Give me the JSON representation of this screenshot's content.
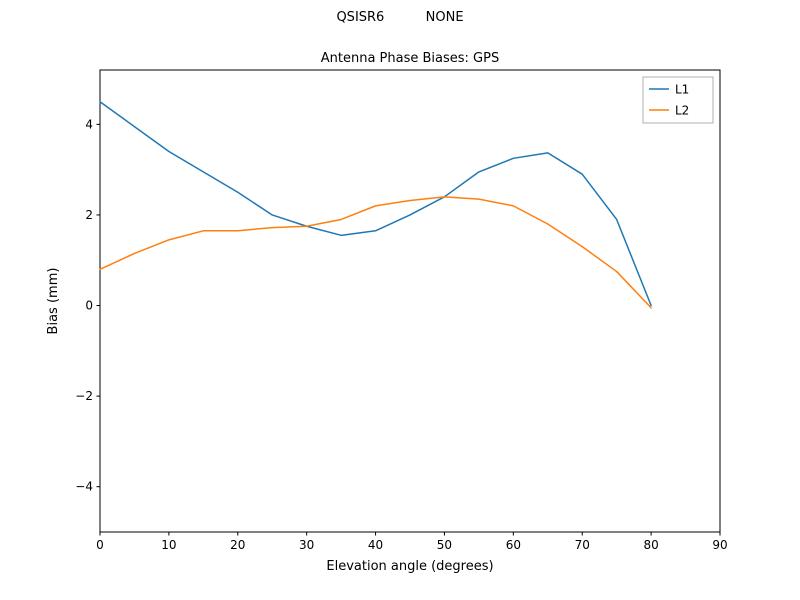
{
  "figure": {
    "suptitle": "QSISR6          NONE"
  },
  "chart_data": {
    "type": "line",
    "suptitle": "QSISR6          NONE",
    "title": "Antenna Phase Biases: GPS",
    "xlabel": "Elevation angle (degrees)",
    "ylabel": "Bias (mm)",
    "xlim": [
      0,
      90
    ],
    "ylim": [
      -5.0,
      5.2
    ],
    "xticks": [
      0,
      10,
      20,
      30,
      40,
      50,
      60,
      70,
      80,
      90
    ],
    "yticks": [
      -4,
      -2,
      0,
      2,
      4
    ],
    "grid": false,
    "legend_position": "upper right",
    "x": [
      0,
      5,
      10,
      15,
      20,
      25,
      30,
      35,
      40,
      45,
      50,
      55,
      60,
      65,
      70,
      75,
      80
    ],
    "series": [
      {
        "name": "L1",
        "color": "#1f77b4",
        "values": [
          4.5,
          3.95,
          3.4,
          2.95,
          2.5,
          2.0,
          1.75,
          1.55,
          1.65,
          2.0,
          2.4,
          2.95,
          3.25,
          3.37,
          2.9,
          1.9,
          0.0
        ]
      },
      {
        "name": "L2",
        "color": "#ff7f0e",
        "values": [
          0.8,
          1.15,
          1.45,
          1.65,
          1.65,
          1.72,
          1.75,
          1.9,
          2.2,
          2.32,
          2.4,
          2.35,
          2.2,
          1.8,
          1.3,
          0.75,
          -0.05
        ]
      }
    ]
  }
}
